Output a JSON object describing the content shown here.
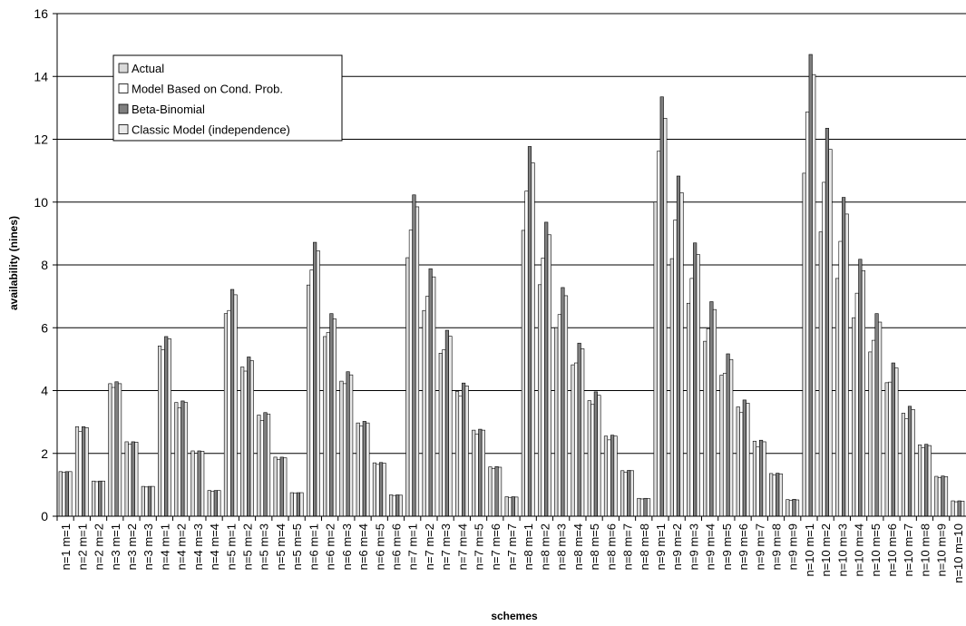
{
  "chart_data": {
    "type": "bar",
    "title": "",
    "xlabel": "schemes",
    "ylabel": "availability (nines)",
    "ylim": [
      0,
      16
    ],
    "yticks": [
      "0",
      "2",
      "4",
      "6",
      "8",
      "10",
      "12",
      "14",
      "16"
    ],
    "grid": true,
    "legend_position": "top-left",
    "categories": [
      "n=1 m=1",
      "n=2 m=1",
      "n=2 m=2",
      "n=3 m=1",
      "n=3 m=2",
      "n=3 m=3",
      "n=4 m=1",
      "n=4 m=2",
      "n=4 m=3",
      "n=4 m=4",
      "n=5 m=1",
      "n=5 m=2",
      "n=5 m=3",
      "n=5 m=4",
      "n=5 m=5",
      "n=6 m=1",
      "n=6 m=2",
      "n=6 m=3",
      "n=6 m=4",
      "n=6 m=5",
      "n=6 m=6",
      "n=7 m=1",
      "n=7 m=2",
      "n=7 m=3",
      "n=7 m=4",
      "n=7 m=5",
      "n=7 m=6",
      "n=7 m=7",
      "n=8 m=1",
      "n=8 m=2",
      "n=8 m=3",
      "n=8 m=4",
      "n=8 m=5",
      "n=8 m=6",
      "n=8 m=7",
      "n=8 m=8",
      "n=9 m=1",
      "n=9 m=2",
      "n=9 m=3",
      "n=9 m=4",
      "n=9 m=5",
      "n=9 m=6",
      "n=9 m=7",
      "n=9 m=8",
      "n=9 m=9",
      "n=10 m=1",
      "n=10 m=2",
      "n=10 m=3",
      "n=10 m=4",
      "n=10 m=5",
      "n=10 m=6",
      "n=10 m=7",
      "n=10 m=8",
      "n=10 m=9",
      "n=10 m=10"
    ],
    "series": [
      {
        "name": "Actual",
        "fill": "#d9d9d9",
        "values": [
          1.42,
          2.85,
          1.12,
          4.22,
          2.37,
          0.95,
          5.42,
          3.62,
          2.08,
          0.82,
          6.45,
          4.75,
          3.22,
          1.88,
          0.75,
          7.36,
          5.72,
          4.3,
          2.97,
          1.7,
          0.68,
          8.23,
          6.55,
          5.19,
          3.97,
          2.74,
          1.57,
          0.62,
          9.1,
          7.37,
          6.0,
          4.82,
          3.68,
          2.55,
          1.45,
          0.57,
          10.0,
          8.2,
          6.78,
          5.57,
          4.49,
          3.48,
          2.39,
          1.36,
          0.53,
          10.92,
          9.05,
          7.57,
          6.32,
          5.23,
          4.25,
          3.28,
          2.27,
          1.27,
          0.49
        ]
      },
      {
        "name": "Model Based on Cond. Prob.",
        "fill": "#ffffff",
        "values": [
          1.4,
          2.7,
          1.1,
          4.1,
          2.3,
          0.93,
          5.3,
          3.45,
          2.0,
          0.8,
          6.55,
          4.62,
          3.05,
          1.8,
          0.73,
          7.84,
          5.85,
          4.22,
          2.87,
          1.65,
          0.66,
          9.11,
          7.0,
          5.3,
          3.82,
          2.62,
          1.52,
          0.6,
          10.35,
          8.22,
          6.42,
          4.88,
          3.56,
          2.43,
          1.4,
          0.55,
          11.62,
          9.43,
          7.57,
          5.97,
          4.55,
          3.3,
          2.21,
          1.31,
          0.51,
          12.87,
          10.63,
          8.75,
          7.1,
          5.6,
          4.27,
          3.1,
          2.18,
          1.23,
          0.46
        ]
      },
      {
        "name": "Beta-Binomial",
        "fill": "#808080",
        "values": [
          1.42,
          2.85,
          1.12,
          4.28,
          2.37,
          0.95,
          5.72,
          3.67,
          2.08,
          0.82,
          7.22,
          5.07,
          3.3,
          1.88,
          0.75,
          8.72,
          6.45,
          4.6,
          3.02,
          1.71,
          0.68,
          10.23,
          7.88,
          5.92,
          4.24,
          2.77,
          1.58,
          0.62,
          11.77,
          9.36,
          7.28,
          5.51,
          3.96,
          2.58,
          1.46,
          0.57,
          13.35,
          10.83,
          8.7,
          6.83,
          5.17,
          3.7,
          2.42,
          1.37,
          0.54,
          14.7,
          12.35,
          10.15,
          8.18,
          6.45,
          4.88,
          3.5,
          2.29,
          1.28,
          0.49
        ]
      },
      {
        "name": "Classic Model (independence)",
        "fill": "#e8e8e8",
        "values": [
          1.42,
          2.82,
          1.12,
          4.22,
          2.36,
          0.95,
          5.65,
          3.62,
          2.07,
          0.82,
          7.05,
          4.95,
          3.25,
          1.86,
          0.75,
          8.45,
          6.28,
          4.5,
          2.97,
          1.69,
          0.67,
          9.85,
          7.62,
          5.73,
          4.15,
          2.74,
          1.56,
          0.61,
          11.25,
          8.96,
          7.02,
          5.33,
          3.85,
          2.55,
          1.45,
          0.56,
          12.67,
          10.3,
          8.33,
          6.58,
          4.99,
          3.6,
          2.37,
          1.35,
          0.52,
          14.06,
          11.68,
          9.62,
          7.82,
          6.18,
          4.72,
          3.4,
          2.25,
          1.26,
          0.48
        ]
      }
    ]
  }
}
